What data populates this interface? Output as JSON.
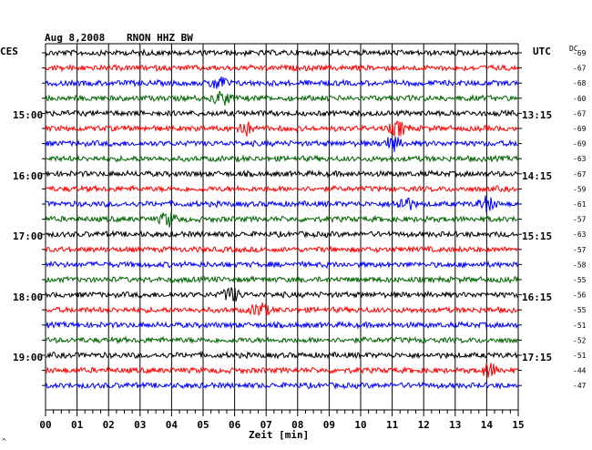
{
  "header": {
    "date": "Aug 8,2008",
    "station": "RNON HHZ BW",
    "left_tz": "CES",
    "right_tz": "UTC",
    "dc_label": "DC"
  },
  "left_hours": [
    "15:00",
    "16:00",
    "17:00",
    "18:00",
    "19:00"
  ],
  "right_hours": [
    "13:15",
    "14:15",
    "15:15",
    "16:15",
    "17:15"
  ],
  "footer": {
    "corner_mark": "^"
  },
  "colors": {
    "trace_cycle": [
      "#000000",
      "#ff0000",
      "#0000ff",
      "#006400"
    ],
    "grid": "#000000",
    "background": "#ffffff"
  },
  "chart_data": {
    "type": "line",
    "title": "Aug 8,2008   RNON HHZ BW",
    "xlabel": "Zeit [min]",
    "ylabel": "",
    "x_ticks": [
      "00",
      "01",
      "02",
      "03",
      "04",
      "05",
      "06",
      "07",
      "08",
      "09",
      "10",
      "11",
      "12",
      "13",
      "14",
      "15"
    ],
    "xlim": [
      0,
      15
    ],
    "dc_offsets": [
      -69,
      -67,
      -68,
      -60,
      -67,
      -69,
      -69,
      -63,
      -67,
      -59,
      -61,
      -57,
      -63,
      -57,
      -58,
      -55,
      -56,
      -55,
      -51,
      -52,
      -51,
      -44,
      -47
    ],
    "events": [
      {
        "row": 2,
        "minute": 5.5
      },
      {
        "row": 3,
        "minute": 5.6
      },
      {
        "row": 5,
        "minute": 6.3
      },
      {
        "row": 5,
        "minute": 11.2
      },
      {
        "row": 6,
        "minute": 11.0
      },
      {
        "row": 10,
        "minute": 11.4
      },
      {
        "row": 10,
        "minute": 14.0
      },
      {
        "row": 11,
        "minute": 3.9
      },
      {
        "row": 16,
        "minute": 5.9
      },
      {
        "row": 17,
        "minute": 6.8
      },
      {
        "row": 21,
        "minute": 14.1
      }
    ]
  }
}
